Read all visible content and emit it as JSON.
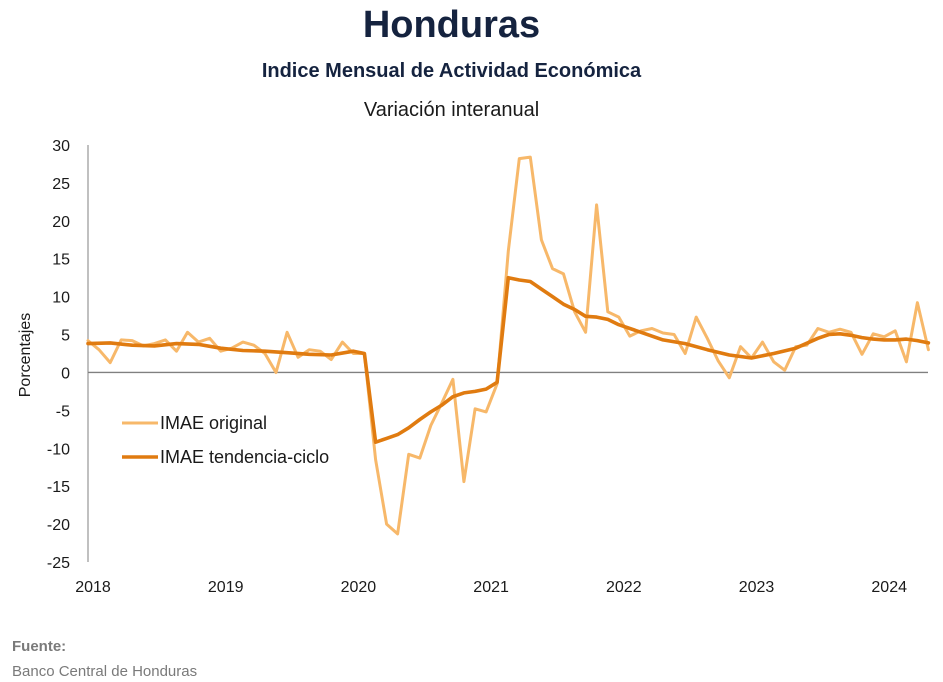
{
  "header": {
    "title": "Honduras",
    "subtitle": "Indice Mensual de  Actividad Económica",
    "subtitle2": "Variación interanual"
  },
  "footer": {
    "source_label": "Fuente:",
    "source_text": "Banco Central de Honduras"
  },
  "chart_data": {
    "type": "line",
    "ylabel": "Porcentajes",
    "ylim": [
      -25,
      30
    ],
    "yticks": [
      30,
      25,
      20,
      15,
      10,
      5,
      0,
      -5,
      -10,
      -15,
      -20,
      -25
    ],
    "xlim": [
      2018,
      2024.33
    ],
    "xticks": [
      "2018",
      "2019",
      "2020",
      "2021",
      "2022",
      "2023",
      "2024"
    ],
    "legend_position": "left-middle",
    "colors": {
      "original": "#F7B86A",
      "trend": "#E07B10",
      "zero_line": "#808080",
      "axis": "#808080"
    },
    "series": [
      {
        "name": "IMAE original",
        "color": "#F7B86A",
        "x": [
          2018.0,
          2018.083,
          2018.167,
          2018.25,
          2018.333,
          2018.417,
          2018.5,
          2018.583,
          2018.667,
          2018.75,
          2018.833,
          2018.917,
          2019.0,
          2019.083,
          2019.167,
          2019.25,
          2019.333,
          2019.417,
          2019.5,
          2019.583,
          2019.667,
          2019.75,
          2019.833,
          2019.917,
          2020.0,
          2020.083,
          2020.167,
          2020.25,
          2020.333,
          2020.417,
          2020.5,
          2020.583,
          2020.667,
          2020.75,
          2020.833,
          2020.917,
          2021.0,
          2021.083,
          2021.167,
          2021.25,
          2021.333,
          2021.417,
          2021.5,
          2021.583,
          2021.667,
          2021.75,
          2021.833,
          2021.917,
          2022.0,
          2022.083,
          2022.167,
          2022.25,
          2022.333,
          2022.417,
          2022.5,
          2022.583,
          2022.667,
          2022.75,
          2022.833,
          2022.917,
          2023.0,
          2023.083,
          2023.167,
          2023.25,
          2023.333,
          2023.417,
          2023.5,
          2023.583,
          2023.667,
          2023.75,
          2023.833,
          2023.917,
          2024.0,
          2024.083,
          2024.167,
          2024.25,
          2024.333
        ],
        "values": [
          4.2,
          3.0,
          1.3,
          4.3,
          4.2,
          3.5,
          3.8,
          4.3,
          2.8,
          5.3,
          4.0,
          4.5,
          2.8,
          3.2,
          4.0,
          3.6,
          2.5,
          0.0,
          5.3,
          2.0,
          3.0,
          2.8,
          1.7,
          4.0,
          2.5,
          2.5,
          -11.5,
          -20.0,
          -21.3,
          -10.8,
          -11.3,
          -7.0,
          -4.0,
          -0.9,
          -14.4,
          -4.8,
          -5.2,
          -1.5,
          16.0,
          28.2,
          28.4,
          17.5,
          13.7,
          13.0,
          8.0,
          5.3,
          22.1,
          8.0,
          7.3,
          4.8,
          5.5,
          5.8,
          5.2,
          5.0,
          2.5,
          7.3,
          4.5,
          1.5,
          -0.7,
          3.4,
          1.9,
          4.0,
          1.4,
          0.3,
          3.4,
          3.6,
          5.8,
          5.3,
          5.7,
          5.3,
          2.4,
          5.1,
          4.7,
          5.5,
          1.4,
          9.2,
          3.0
        ]
      },
      {
        "name": "IMAE tendencia-ciclo",
        "color": "#E07B10",
        "x": [
          2018.0,
          2018.167,
          2018.333,
          2018.5,
          2018.667,
          2018.833,
          2019.0,
          2019.167,
          2019.333,
          2019.5,
          2019.667,
          2019.833,
          2020.0,
          2020.083,
          2020.167,
          2020.25,
          2020.333,
          2020.417,
          2020.5,
          2020.583,
          2020.667,
          2020.75,
          2020.833,
          2020.917,
          2021.0,
          2021.083,
          2021.167,
          2021.25,
          2021.333,
          2021.417,
          2021.5,
          2021.583,
          2021.667,
          2021.75,
          2021.833,
          2021.917,
          2022.0,
          2022.167,
          2022.333,
          2022.5,
          2022.667,
          2022.833,
          2023.0,
          2023.167,
          2023.333,
          2023.5,
          2023.583,
          2023.667,
          2023.75,
          2023.833,
          2023.917,
          2024.0,
          2024.083,
          2024.167,
          2024.25,
          2024.333
        ],
        "values": [
          3.8,
          3.9,
          3.6,
          3.5,
          3.8,
          3.7,
          3.2,
          2.9,
          2.8,
          2.6,
          2.4,
          2.3,
          2.8,
          2.5,
          -9.2,
          -8.7,
          -8.2,
          -7.3,
          -6.2,
          -5.2,
          -4.3,
          -3.2,
          -2.7,
          -2.5,
          -2.2,
          -1.3,
          12.5,
          12.2,
          12.0,
          11.0,
          10.0,
          9.0,
          8.3,
          7.4,
          7.3,
          7.0,
          6.3,
          5.3,
          4.3,
          3.8,
          3.0,
          2.3,
          1.9,
          2.5,
          3.2,
          4.5,
          5.0,
          5.1,
          4.9,
          4.6,
          4.4,
          4.3,
          4.3,
          4.4,
          4.2,
          3.9
        ]
      }
    ]
  }
}
